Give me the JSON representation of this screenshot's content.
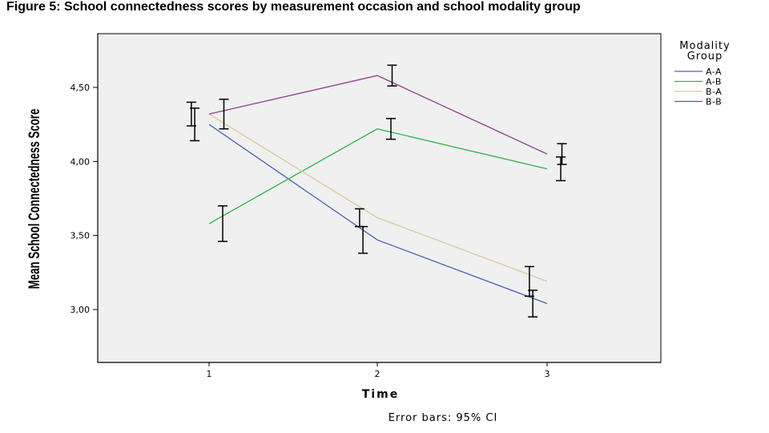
{
  "figure_title": "Figure 5: School connectedness scores by measurement occasion and school modality group",
  "chart_data": {
    "type": "line",
    "title": "Figure 5: School connectedness scores by measurement occasion and school modality group",
    "xlabel": "Time",
    "ylabel": "Mean School Connectedness Score",
    "categories": [
      "1",
      "2",
      "3"
    ],
    "ylim": [
      2.63,
      4.85
    ],
    "yticks": [
      3.0,
      3.5,
      4.0,
      4.5
    ],
    "ytick_labels": [
      "3,00",
      "3,50",
      "4,00",
      "4,50"
    ],
    "grid": false,
    "legend_title": "Modality Group",
    "legend_position": "right",
    "note": "Error bars: 95% CI",
    "series": [
      {
        "name": "A-A",
        "color": "#4b64b4",
        "values": [
          4.25,
          3.47,
          3.04
        ],
        "ci_center": [
          4.25,
          3.47,
          3.04
        ],
        "ci_half": [
          0.11,
          0.09,
          0.09
        ],
        "ci_side": "left"
      },
      {
        "name": "A-B",
        "color": "#2db34b",
        "values": [
          3.58,
          4.22,
          3.95
        ],
        "ci_center": [
          3.58,
          4.22,
          3.95
        ],
        "ci_half": [
          0.12,
          0.07,
          0.08
        ],
        "ci_side": "right"
      },
      {
        "name": "B-A",
        "color": "#d8c99a",
        "values": [
          4.32,
          3.62,
          3.19
        ],
        "ci_center": [
          4.32,
          3.62,
          3.19
        ],
        "ci_half": [
          0.08,
          0.06,
          0.1
        ],
        "ci_side": "left"
      },
      {
        "name": "B-B",
        "color": "#8e3f8e",
        "values": [
          4.32,
          4.58,
          4.05
        ],
        "ci_center": [
          4.32,
          4.58,
          4.05
        ],
        "ci_half": [
          0.1,
          0.07,
          0.07
        ],
        "ci_side": "right"
      }
    ]
  }
}
